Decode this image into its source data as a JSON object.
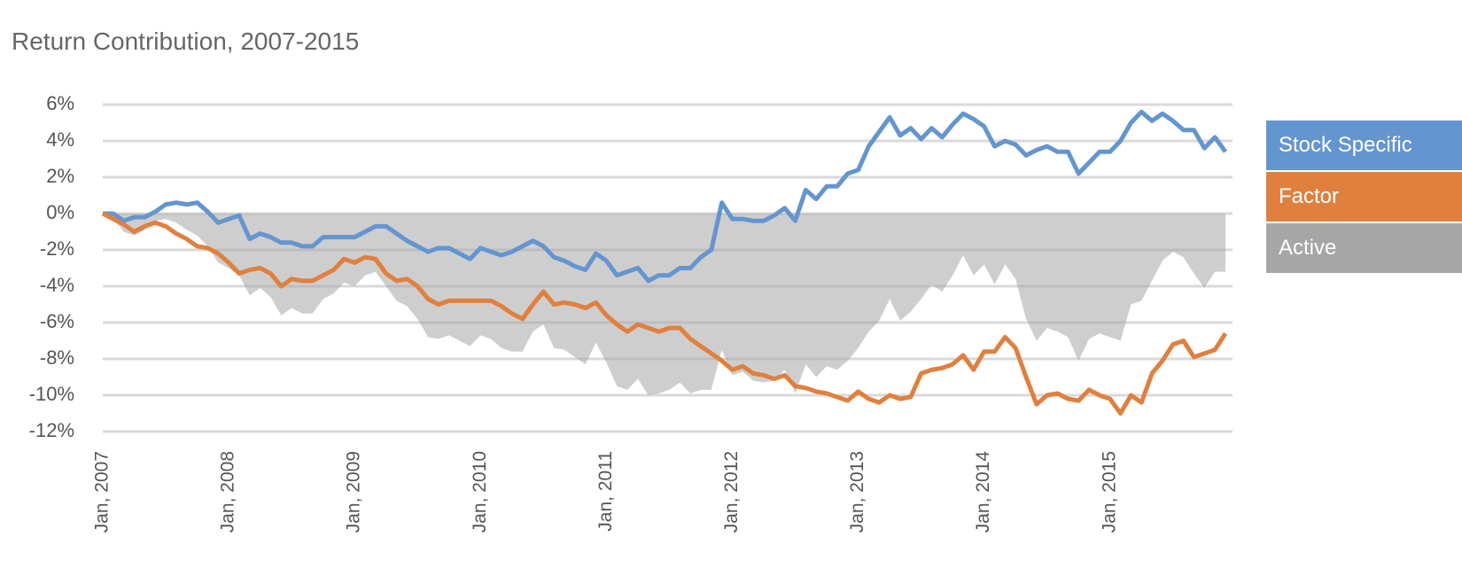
{
  "chart_data": {
    "type": "line",
    "title": "Return Contribution, 2007-2015",
    "categories": [
      "Jan, 2007",
      null,
      null,
      null,
      null,
      null,
      null,
      null,
      null,
      null,
      null,
      null,
      "Jan, 2008",
      null,
      null,
      null,
      null,
      null,
      null,
      null,
      null,
      null,
      null,
      null,
      "Jan, 2009",
      null,
      null,
      null,
      null,
      null,
      null,
      null,
      null,
      null,
      null,
      null,
      "Jan, 2010",
      null,
      null,
      null,
      null,
      null,
      null,
      null,
      null,
      null,
      null,
      null,
      "Jan, 2011",
      null,
      null,
      null,
      null,
      null,
      null,
      null,
      null,
      null,
      null,
      null,
      "Jan, 2012",
      null,
      null,
      null,
      null,
      null,
      null,
      null,
      null,
      null,
      null,
      null,
      "Jan, 2013",
      null,
      null,
      null,
      null,
      null,
      null,
      null,
      null,
      null,
      null,
      null,
      "Jan, 2014",
      null,
      null,
      null,
      null,
      null,
      null,
      null,
      null,
      null,
      null,
      null,
      "Jan, 2015",
      null,
      null,
      null,
      null,
      null,
      null,
      null,
      null,
      null,
      null,
      null
    ],
    "series": [
      {
        "name": "Stock Specific",
        "color": "#6495cf",
        "kind": "line",
        "values": [
          0,
          0,
          -0.4,
          -0.2,
          -0.2,
          0.1,
          0.5,
          0.6,
          0.5,
          0.6,
          0.1,
          -0.5,
          -0.3,
          -0.1,
          -1.4,
          -1.1,
          -1.3,
          -1.6,
          -1.6,
          -1.8,
          -1.8,
          -1.3,
          -1.3,
          -1.3,
          -1.3,
          -1.0,
          -0.7,
          -0.7,
          -1.1,
          -1.5,
          -1.8,
          -2.1,
          -1.9,
          -1.9,
          -2.2,
          -2.5,
          -1.9,
          -2.1,
          -2.3,
          -2.1,
          -1.8,
          -1.5,
          -1.8,
          -2.4,
          -2.6,
          -2.9,
          -3.1,
          -2.2,
          -2.6,
          -3.4,
          -3.2,
          -3.0,
          -3.7,
          -3.4,
          -3.4,
          -3.0,
          -3.0,
          -2.4,
          -2.0,
          0.6,
          -0.3,
          -0.3,
          -0.4,
          -0.4,
          -0.1,
          0.3,
          -0.4,
          1.3,
          0.8,
          1.5,
          1.5,
          2.2,
          2.4,
          3.7,
          4.5,
          5.3,
          4.3,
          4.7,
          4.1,
          4.7,
          4.2,
          4.9,
          5.5,
          5.2,
          4.8,
          3.7,
          4.0,
          3.8,
          3.2,
          3.5,
          3.7,
          3.4,
          3.4,
          2.2,
          2.8,
          3.4,
          3.4,
          4.0,
          5.0,
          5.6,
          5.1,
          5.5,
          5.1,
          4.6,
          4.6,
          3.6,
          4.2,
          3.4
        ]
      },
      {
        "name": "Factor",
        "color": "#e0803f",
        "kind": "line",
        "values": [
          0,
          -0.3,
          -0.6,
          -1.0,
          -0.7,
          -0.5,
          -0.7,
          -1.1,
          -1.4,
          -1.8,
          -1.9,
          -2.2,
          -2.7,
          -3.3,
          -3.1,
          -3.0,
          -3.3,
          -4.0,
          -3.6,
          -3.7,
          -3.7,
          -3.4,
          -3.1,
          -2.5,
          -2.7,
          -2.4,
          -2.5,
          -3.3,
          -3.7,
          -3.6,
          -4.0,
          -4.7,
          -5.0,
          -4.8,
          -4.8,
          -4.8,
          -4.8,
          -4.8,
          -5.1,
          -5.5,
          -5.8,
          -5.0,
          -4.3,
          -5.0,
          -4.9,
          -5.0,
          -5.2,
          -4.9,
          -5.6,
          -6.1,
          -6.5,
          -6.1,
          -6.3,
          -6.5,
          -6.3,
          -6.3,
          -6.9,
          -7.3,
          -7.7,
          -8.1,
          -8.6,
          -8.4,
          -8.8,
          -8.9,
          -9.1,
          -8.9,
          -9.5,
          -9.6,
          -9.8,
          -9.9,
          -10.1,
          -10.3,
          -9.8,
          -10.2,
          -10.4,
          -10.0,
          -10.2,
          -10.1,
          -8.8,
          -8.6,
          -8.5,
          -8.3,
          -7.8,
          -8.6,
          -7.6,
          -7.6,
          -6.8,
          -7.4,
          -9.0,
          -10.5,
          -10.0,
          -9.9,
          -10.2,
          -10.3,
          -9.7,
          -10.0,
          -10.2,
          -11.0,
          -10.0,
          -10.4,
          -8.8,
          -8.1,
          -7.2,
          -7.0,
          -7.9,
          -7.7,
          -7.5,
          -6.6
        ]
      },
      {
        "name": "Active",
        "color": "#a6a6a6",
        "kind": "area",
        "values": [
          0,
          -0.3,
          -1.0,
          -1.2,
          -0.9,
          -0.4,
          -0.3,
          -0.5,
          -0.9,
          -1.2,
          -1.8,
          -2.7,
          -3.0,
          -3.4,
          -4.5,
          -4.1,
          -4.6,
          -5.6,
          -5.2,
          -5.5,
          -5.5,
          -4.7,
          -4.4,
          -3.8,
          -4.0,
          -3.4,
          -3.2,
          -4.0,
          -4.8,
          -5.1,
          -5.8,
          -6.8,
          -6.9,
          -6.7,
          -7.0,
          -7.3,
          -6.7,
          -6.9,
          -7.4,
          -7.6,
          -7.6,
          -6.5,
          -6.1,
          -7.4,
          -7.5,
          -7.9,
          -8.3,
          -7.1,
          -8.2,
          -9.5,
          -9.7,
          -9.1,
          -10.0,
          -9.9,
          -9.7,
          -9.3,
          -9.9,
          -9.7,
          -9.7,
          -7.5,
          -8.9,
          -8.7,
          -9.2,
          -9.3,
          -9.2,
          -8.6,
          -9.9,
          -8.3,
          -9.0,
          -8.4,
          -8.6,
          -8.1,
          -7.4,
          -6.5,
          -5.9,
          -4.7,
          -5.9,
          -5.4,
          -4.7,
          -3.9,
          -4.3,
          -3.4,
          -2.3,
          -3.4,
          -2.8,
          -3.9,
          -2.8,
          -3.6,
          -5.8,
          -7.0,
          -6.3,
          -6.5,
          -6.8,
          -8.1,
          -6.9,
          -6.6,
          -6.8,
          -7.0,
          -5.0,
          -4.8,
          -3.7,
          -2.6,
          -2.1,
          -2.4,
          -3.3,
          -4.1,
          -3.2,
          -3.2
        ]
      }
    ],
    "ylim": [
      -12,
      6
    ],
    "yticks": [
      {
        "value": 6,
        "label": "6%"
      },
      {
        "value": 4,
        "label": "4%"
      },
      {
        "value": 2,
        "label": "2%"
      },
      {
        "value": 0,
        "label": "0%"
      },
      {
        "value": -2,
        "label": "-2%"
      },
      {
        "value": -4,
        "label": "-4%"
      },
      {
        "value": -6,
        "label": "-6%"
      },
      {
        "value": -8,
        "label": "-8%"
      },
      {
        "value": -10,
        "label": "-10%"
      },
      {
        "value": -12,
        "label": "-12%"
      }
    ],
    "grid": true,
    "legend": "right"
  }
}
